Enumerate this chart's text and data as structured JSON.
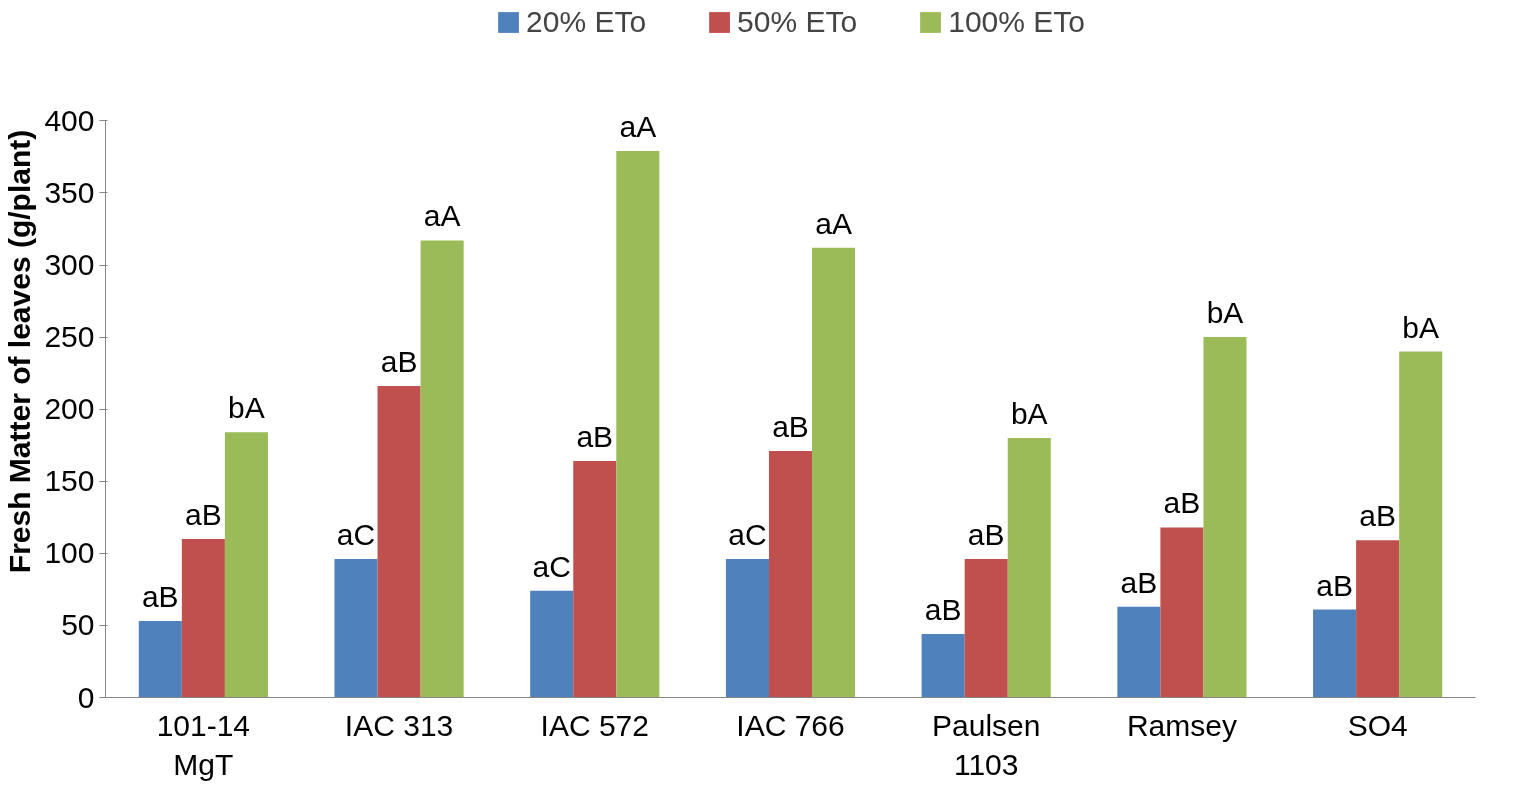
{
  "chart_data": {
    "type": "bar",
    "ylabel": "Fresh Matter of leaves (g/plant)",
    "categories": [
      "101-14\nMgT",
      "IAC 313",
      "IAC 572",
      "IAC 766",
      "Paulsen\n1103",
      "Ramsey",
      "SO4"
    ],
    "series": [
      {
        "name": "20% ETo",
        "color": "#4f81bd",
        "values": [
          53,
          96,
          74,
          96,
          44,
          63,
          61
        ],
        "value_labels": [
          "aB",
          "aC",
          "aC",
          "aC",
          "aB",
          "aB",
          "aB"
        ]
      },
      {
        "name": "50% ETo",
        "color": "#c0504d",
        "values": [
          110,
          216,
          164,
          171,
          96,
          118,
          109
        ],
        "value_labels": [
          "aB",
          "aB",
          "aB",
          "aB",
          "aB",
          "aB",
          "aB"
        ]
      },
      {
        "name": "100% ETo",
        "color": "#9bbb59",
        "values": [
          184,
          317,
          379,
          312,
          180,
          250,
          240
        ],
        "value_labels": [
          "bA",
          "aA",
          "aA",
          "aA",
          "bA",
          "bA",
          "bA"
        ]
      }
    ],
    "ylim": [
      0,
      400
    ],
    "yticks": [
      0,
      50,
      100,
      150,
      200,
      250,
      300,
      350,
      400
    ],
    "grid": false,
    "legend": "top"
  }
}
